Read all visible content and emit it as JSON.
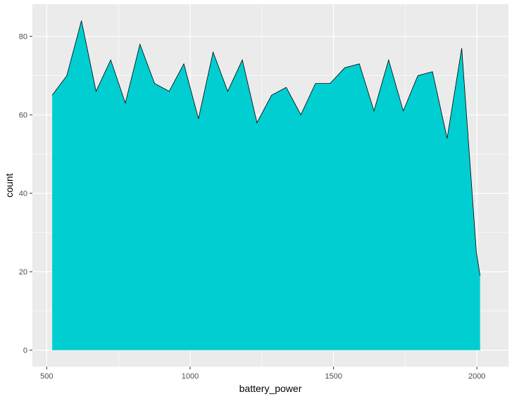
{
  "chart_data": {
    "type": "area",
    "title": "",
    "xlabel": "battery_power",
    "ylabel": "count",
    "xlim": [
      450,
      2110
    ],
    "ylim": [
      -4.2,
      88.2
    ],
    "xticks": [
      500,
      1000,
      1500,
      2000
    ],
    "xtick_labels": [
      "500",
      "1000",
      "1500",
      "2000"
    ],
    "yticks": [
      0,
      20,
      40,
      60,
      80
    ],
    "ytick_labels": [
      "0",
      "20",
      "40",
      "60",
      "80"
    ],
    "grid": true,
    "legend": "none",
    "fill_color": "#00CED1",
    "line_color": "#000000",
    "panel_background": "#EBEBEB",
    "grid_color": "#FFFFFF",
    "x": [
      519,
      570,
      621,
      672,
      723,
      774,
      825,
      876,
      927,
      978,
      1029,
      1080,
      1131,
      1182,
      1233,
      1284,
      1335,
      1386,
      1437,
      1488,
      1539,
      1590,
      1641,
      1692,
      1743,
      1794,
      1845,
      1896,
      1947,
      1998,
      2011
    ],
    "values": [
      65,
      70,
      84,
      66,
      74,
      63,
      78,
      68,
      66,
      73,
      59,
      76,
      66,
      74,
      58,
      65,
      67,
      60,
      68,
      68,
      72,
      73,
      61,
      74,
      61,
      70,
      71,
      54,
      77,
      25,
      19
    ]
  }
}
